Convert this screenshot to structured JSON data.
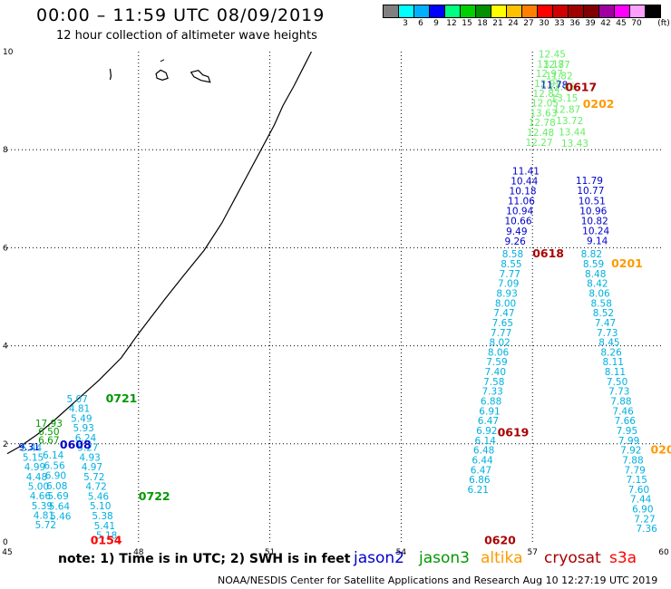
{
  "title": "00:00 – 11:59 UTC 08/09/2019",
  "subtitle": "12 hour collection of altimeter wave heights",
  "colorbar": {
    "unit": "(ft)",
    "segments": [
      {
        "color": "#808080",
        "label": ""
      },
      {
        "color": "#00ffff",
        "label": "3"
      },
      {
        "color": "#00b0ff",
        "label": "6"
      },
      {
        "color": "#0000ff",
        "label": "9"
      },
      {
        "color": "#00ff80",
        "label": "12"
      },
      {
        "color": "#00d000",
        "label": "15"
      },
      {
        "color": "#009000",
        "label": "18"
      },
      {
        "color": "#ffff00",
        "label": "21"
      },
      {
        "color": "#ffc000",
        "label": "24"
      },
      {
        "color": "#ff8000",
        "label": "27"
      },
      {
        "color": "#ff0000",
        "label": "30"
      },
      {
        "color": "#d00000",
        "label": "33"
      },
      {
        "color": "#a00000",
        "label": "36"
      },
      {
        "color": "#800000",
        "label": "39"
      },
      {
        "color": "#a000a0",
        "label": "42"
      },
      {
        "color": "#ff00ff",
        "label": "45"
      },
      {
        "color": "#ffa0ff",
        "label": "70"
      },
      {
        "color": "#000000",
        "label": ""
      }
    ]
  },
  "axes": {
    "lon_ticks": [
      "45",
      "48",
      "51",
      "54",
      "57",
      "60"
    ],
    "lat_ticks": [
      "0",
      "2",
      "4",
      "6",
      "8",
      "10"
    ],
    "xlim": [
      45,
      60
    ],
    "ylim": [
      0,
      10
    ]
  },
  "colors": {
    "jason2": "#0000cc",
    "jason3": "#009900",
    "altika": "#ff9900",
    "cryosat": "#aa0000",
    "s3a": "#ff0000",
    "cyan": "#00b0e0",
    "lightgreen": "#66ee66",
    "coast": "#000000",
    "grid": "#000000"
  },
  "pass_labels": [
    {
      "text": "0721",
      "color": "#009900",
      "lon": 47.25,
      "lat": 2.85
    },
    {
      "text": "0608",
      "color": "#0000cc",
      "lon": 46.2,
      "lat": 1.9
    },
    {
      "text": "0722",
      "color": "#009900",
      "lon": 48.0,
      "lat": 0.85
    },
    {
      "text": "0154",
      "color": "#ff0000",
      "lon": 46.9,
      "lat": -0.05
    },
    {
      "text": "0617",
      "color": "#aa0000",
      "lon": 57.75,
      "lat": 9.2
    },
    {
      "text": "0202",
      "color": "#ff9900",
      "lon": 58.15,
      "lat": 8.85
    },
    {
      "text": "0618",
      "color": "#aa0000",
      "lon": 57.0,
      "lat": 5.8
    },
    {
      "text": "0201",
      "color": "#ff9900",
      "lon": 58.8,
      "lat": 5.6
    },
    {
      "text": "0619",
      "color": "#aa0000",
      "lon": 56.2,
      "lat": 2.15
    },
    {
      "text": "0620",
      "color": "#aa0000",
      "lon": 55.9,
      "lat": -0.05
    },
    {
      "text": "020",
      "color": "#ff9900",
      "lon": 59.7,
      "lat": 1.8
    }
  ],
  "wave_tracks": [
    {
      "name": "",
      "color": "#00b0e0",
      "lon0": 46.6,
      "lat0": 2.85,
      "dlon": 0.048,
      "dlat": -0.199,
      "values": [
        "5.07",
        "4.81",
        "5.49",
        "5.93",
        "6.24",
        "5.27",
        "4.93",
        "4.97",
        "5.72",
        "4.72",
        "5.46",
        "5.10",
        "5.38",
        "5.41",
        "5.18"
      ]
    },
    {
      "name": "",
      "color": "#00b0e0",
      "lon0": 45.55,
      "lat0": 1.85,
      "dlon": 0.041,
      "dlat": -0.197,
      "values": [
        "5.44",
        "5.15",
        "4.99",
        "4.48",
        "5.00",
        "4.66",
        "5.39",
        "4.81",
        "5.72"
      ]
    },
    {
      "name": "",
      "color": "#00b0e0",
      "lon0": 46.05,
      "lat0": 1.7,
      "dlon": 0.028,
      "dlat": -0.208,
      "values": [
        "6.14",
        "6.56",
        "6.90",
        "6.08",
        "5.69",
        "5.64",
        "5.46"
      ]
    },
    {
      "name": "",
      "color": "#009900",
      "lon0": 45.95,
      "lat0": 2.35,
      "dlon": 0.0,
      "dlat": -0.17,
      "values": [
        "17.93",
        "6.50",
        "6.67"
      ]
    },
    {
      "name": "",
      "color": "#0000cc",
      "lon0": 45.5,
      "lat0": 1.87,
      "dlon": 0,
      "dlat": 0,
      "values": [
        "9.31"
      ]
    },
    {
      "name": "",
      "color": "#66ee66",
      "lon0": 57.45,
      "lat0": 9.88,
      "dlon": -0.033,
      "dlat": -0.2,
      "values": [
        "12.45",
        "13.17",
        "12.97",
        "12.92",
        "12.82",
        "12.05",
        "13.63",
        "12.78",
        "12.48",
        "12.27"
      ]
    },
    {
      "name": "",
      "color": "#66ee66",
      "lon0": 57.55,
      "lat0": 9.67,
      "dlon": 0.06,
      "dlat": -0.23,
      "values": [
        "12.87",
        "11.82",
        "12.85",
        "13.15",
        "12.87",
        "13.72",
        "13.44",
        "13.43"
      ]
    },
    {
      "name": "",
      "color": "#0000cc",
      "lon0": 56.85,
      "lat0": 7.5,
      "dlon": -0.035,
      "dlat": -0.205,
      "values": [
        "11.41",
        "10.44",
        "10.18",
        "11.06",
        "10.94",
        "10.66",
        "9.49",
        "9.26"
      ]
    },
    {
      "name": "",
      "color": "#0000cc",
      "lon0": 57.5,
      "lat0": 9.25,
      "dlon": 0,
      "dlat": 0,
      "values": [
        "11.78"
      ]
    },
    {
      "name": "",
      "color": "#0000cc",
      "lon0": 58.3,
      "lat0": 7.3,
      "dlon": 0.03,
      "dlat": -0.205,
      "values": [
        "11.79",
        "10.77",
        "10.51",
        "10.96",
        "10.82",
        "10.24",
        "9.14"
      ]
    },
    {
      "name": "",
      "color": "#00b0e0",
      "lon0": 56.55,
      "lat0": 5.8,
      "dlon": -0.033,
      "dlat": -0.2,
      "values": [
        "8.58",
        "8.55",
        "7.77",
        "7.09",
        "8.93",
        "8.00",
        "7.47",
        "7.65",
        "7.77",
        "8.02",
        "8.06",
        "7.59",
        "7.40",
        "7.58",
        "7.33",
        "6.88",
        "6.91",
        "6.47",
        "6.92",
        "6.14",
        "6.48",
        "6.44",
        "6.47",
        "6.86",
        "6.21"
      ]
    },
    {
      "name": "",
      "color": "#00b0e0",
      "lon0": 58.35,
      "lat0": 5.8,
      "dlon": 0.045,
      "dlat": -0.2,
      "values": [
        "8.82",
        "8.59",
        "8.48",
        "8.42",
        "8.06",
        "8.58",
        "8.52",
        "7.47",
        "7.73",
        "8.45",
        "8.26",
        "8.11",
        "8.11",
        "7.50",
        "7.73",
        "7.88",
        "7.46",
        "7.66",
        "7.95",
        "7.99",
        "7.92",
        "7.88",
        "7.79",
        "7.15",
        "7.60",
        "7.44",
        "6.90",
        "7.27",
        "7.36"
      ]
    }
  ],
  "note": "note: 1) Time is in UTC; 2) SWH is in feet",
  "legend": [
    {
      "label": "jason2",
      "color": "#0000cc"
    },
    {
      "label": "jason3",
      "color": "#009900"
    },
    {
      "label": "altika",
      "color": "#ff9900"
    },
    {
      "label": "cryosat",
      "color": "#aa0000"
    },
    {
      "label": "s3a",
      "color": "#ff0000"
    }
  ],
  "footer": "NOAA/NESDIS Center for Satellite Applications and Research   Aug 10 12:27:19 UTC 2019"
}
